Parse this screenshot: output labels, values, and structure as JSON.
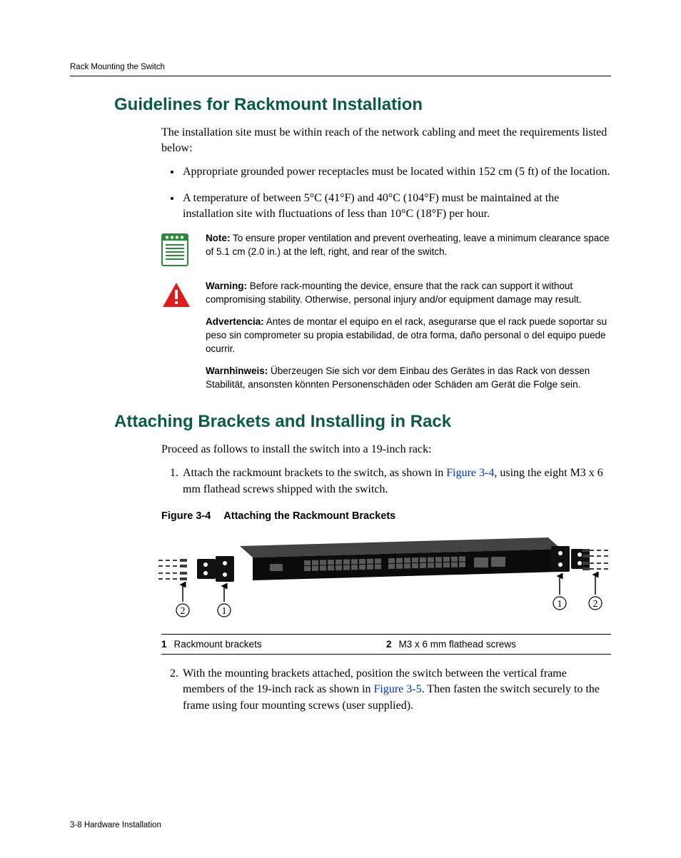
{
  "runningHeader": "Rack Mounting the Switch",
  "footer": "3-8    Hardware Installation",
  "heading1": "Guidelines for Rackmount Installation",
  "intro1": "The installation site must be within reach of the network cabling and meet the requirements listed below:",
  "bullets": [
    "Appropriate grounded power receptacles must be located within 152 cm (5 ft) of the location.",
    "A temperature of between 5°C (41°F) and 40°C (104°F) must be maintained at the installation site with fluctuations of less than 10°C (18°F) per hour."
  ],
  "note": {
    "label": "Note:",
    "text": " To ensure proper ventilation and prevent overheating, leave a minimum clearance space of 5.1 cm (2.0 in.) at the left, right, and rear of the switch."
  },
  "warning": {
    "en": {
      "label": "Warning:",
      "text": " Before rack-mounting the device, ensure that the rack can support it without compromising stability. Otherwise, personal injury and/or equipment damage may result."
    },
    "es": {
      "label": "Advertencia:",
      "text": " Antes de montar el equipo en el rack, asegurarse que el rack puede soportar su peso sin comprometer su propia estabilidad, de otra forma, daño personal o del equipo puede ocurrir."
    },
    "de": {
      "label": "Warnhinweis:",
      "text": " Überzeugen Sie sich vor dem Einbau des Gerätes in das Rack von dessen Stabilität, ansonsten könnten Personenschäden oder Schäden am Gerät die Folge sein."
    }
  },
  "heading2": "Attaching Brackets and Installing in Rack",
  "intro2": "Proceed as follows to install the switch into a 19‑inch rack:",
  "step1": {
    "pre": "Attach the rackmount brackets to the switch, as shown in ",
    "link": "Figure 3‑4",
    "post": ", using the eight M3 x 6 mm flathead screws shipped with the switch."
  },
  "figure": {
    "num": "Figure 3-4",
    "title": "Attaching the Rackmount Brackets",
    "legend": [
      {
        "n": "1",
        "t": "Rackmount brackets"
      },
      {
        "n": "2",
        "t": "M3 x 6 mm flathead screws"
      }
    ],
    "colors": {
      "chassis": "#0b0b0b",
      "chassisHighlight": "#424242",
      "bracket": "#111111",
      "screw": "#3c3c3c",
      "portRow": "#5a5a5a",
      "portSlot": "#222222",
      "calloutCircle": "#000000",
      "arrow": "#000000",
      "bg": "#ffffff"
    }
  },
  "step2": {
    "pre": "With the mounting brackets attached, position the switch between the vertical frame members of the 19‑inch rack as shown in ",
    "link": "Figure 3‑5",
    "post": ". Then fasten the switch securely to the frame using four mounting screws (user supplied)."
  }
}
